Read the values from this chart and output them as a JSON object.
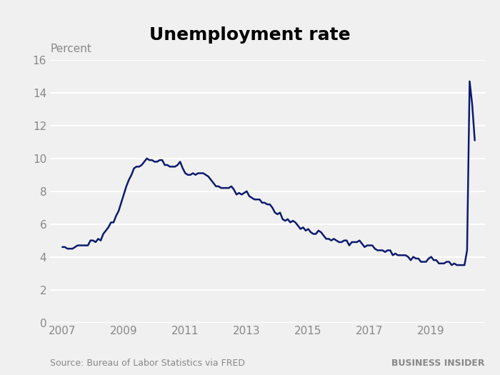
{
  "title": "Unemployment rate",
  "ylabel": "Percent",
  "source_text": "Source: Bureau of Labor Statistics via FRED",
  "brand_text": "BUSINESS INSIDER",
  "line_color": "#0d1b6e",
  "background_color": "#f0f0f0",
  "plot_bg_color": "#f0f0f0",
  "ylim": [
    0,
    16
  ],
  "yticks": [
    0,
    2,
    4,
    6,
    8,
    10,
    12,
    14,
    16
  ],
  "xlim": [
    2006.6,
    2020.75
  ],
  "xticks": [
    2007,
    2009,
    2011,
    2013,
    2015,
    2017,
    2019
  ],
  "line_width": 1.8,
  "tick_fontsize": 11,
  "title_fontsize": 18,
  "ylabel_fontsize": 11,
  "source_fontsize": 9,
  "brand_fontsize": 9,
  "grid_color": "#ffffff",
  "grid_linewidth": 1.5,
  "tick_color": "#888888",
  "data": [
    [
      2007.0,
      4.6
    ],
    [
      2007.083,
      4.6
    ],
    [
      2007.167,
      4.5
    ],
    [
      2007.25,
      4.5
    ],
    [
      2007.333,
      4.5
    ],
    [
      2007.417,
      4.6
    ],
    [
      2007.5,
      4.7
    ],
    [
      2007.583,
      4.7
    ],
    [
      2007.667,
      4.7
    ],
    [
      2007.75,
      4.7
    ],
    [
      2007.833,
      4.7
    ],
    [
      2007.917,
      5.0
    ],
    [
      2008.0,
      5.0
    ],
    [
      2008.083,
      4.9
    ],
    [
      2008.167,
      5.1
    ],
    [
      2008.25,
      5.0
    ],
    [
      2008.333,
      5.4
    ],
    [
      2008.417,
      5.6
    ],
    [
      2008.5,
      5.8
    ],
    [
      2008.583,
      6.1
    ],
    [
      2008.667,
      6.1
    ],
    [
      2008.75,
      6.5
    ],
    [
      2008.833,
      6.8
    ],
    [
      2008.917,
      7.3
    ],
    [
      2009.0,
      7.8
    ],
    [
      2009.083,
      8.3
    ],
    [
      2009.167,
      8.7
    ],
    [
      2009.25,
      9.0
    ],
    [
      2009.333,
      9.4
    ],
    [
      2009.417,
      9.5
    ],
    [
      2009.5,
      9.5
    ],
    [
      2009.583,
      9.6
    ],
    [
      2009.667,
      9.8
    ],
    [
      2009.75,
      10.0
    ],
    [
      2009.833,
      9.9
    ],
    [
      2009.917,
      9.9
    ],
    [
      2010.0,
      9.8
    ],
    [
      2010.083,
      9.8
    ],
    [
      2010.167,
      9.9
    ],
    [
      2010.25,
      9.9
    ],
    [
      2010.333,
      9.6
    ],
    [
      2010.417,
      9.6
    ],
    [
      2010.5,
      9.5
    ],
    [
      2010.583,
      9.5
    ],
    [
      2010.667,
      9.5
    ],
    [
      2010.75,
      9.6
    ],
    [
      2010.833,
      9.8
    ],
    [
      2010.917,
      9.4
    ],
    [
      2011.0,
      9.1
    ],
    [
      2011.083,
      9.0
    ],
    [
      2011.167,
      9.0
    ],
    [
      2011.25,
      9.1
    ],
    [
      2011.333,
      9.0
    ],
    [
      2011.417,
      9.1
    ],
    [
      2011.5,
      9.1
    ],
    [
      2011.583,
      9.1
    ],
    [
      2011.667,
      9.0
    ],
    [
      2011.75,
      8.9
    ],
    [
      2011.833,
      8.7
    ],
    [
      2011.917,
      8.5
    ],
    [
      2012.0,
      8.3
    ],
    [
      2012.083,
      8.3
    ],
    [
      2012.167,
      8.2
    ],
    [
      2012.25,
      8.2
    ],
    [
      2012.333,
      8.2
    ],
    [
      2012.417,
      8.2
    ],
    [
      2012.5,
      8.3
    ],
    [
      2012.583,
      8.1
    ],
    [
      2012.667,
      7.8
    ],
    [
      2012.75,
      7.9
    ],
    [
      2012.833,
      7.8
    ],
    [
      2012.917,
      7.9
    ],
    [
      2013.0,
      8.0
    ],
    [
      2013.083,
      7.7
    ],
    [
      2013.167,
      7.6
    ],
    [
      2013.25,
      7.5
    ],
    [
      2013.333,
      7.5
    ],
    [
      2013.417,
      7.5
    ],
    [
      2013.5,
      7.3
    ],
    [
      2013.583,
      7.3
    ],
    [
      2013.667,
      7.2
    ],
    [
      2013.75,
      7.2
    ],
    [
      2013.833,
      7.0
    ],
    [
      2013.917,
      6.7
    ],
    [
      2014.0,
      6.6
    ],
    [
      2014.083,
      6.7
    ],
    [
      2014.167,
      6.3
    ],
    [
      2014.25,
      6.2
    ],
    [
      2014.333,
      6.3
    ],
    [
      2014.417,
      6.1
    ],
    [
      2014.5,
      6.2
    ],
    [
      2014.583,
      6.1
    ],
    [
      2014.667,
      5.9
    ],
    [
      2014.75,
      5.7
    ],
    [
      2014.833,
      5.8
    ],
    [
      2014.917,
      5.6
    ],
    [
      2015.0,
      5.7
    ],
    [
      2015.083,
      5.5
    ],
    [
      2015.167,
      5.4
    ],
    [
      2015.25,
      5.4
    ],
    [
      2015.333,
      5.6
    ],
    [
      2015.417,
      5.5
    ],
    [
      2015.5,
      5.3
    ],
    [
      2015.583,
      5.1
    ],
    [
      2015.667,
      5.1
    ],
    [
      2015.75,
      5.0
    ],
    [
      2015.833,
      5.1
    ],
    [
      2015.917,
      5.0
    ],
    [
      2016.0,
      4.9
    ],
    [
      2016.083,
      4.9
    ],
    [
      2016.167,
      5.0
    ],
    [
      2016.25,
      5.0
    ],
    [
      2016.333,
      4.7
    ],
    [
      2016.417,
      4.9
    ],
    [
      2016.5,
      4.9
    ],
    [
      2016.583,
      4.9
    ],
    [
      2016.667,
      5.0
    ],
    [
      2016.75,
      4.8
    ],
    [
      2016.833,
      4.6
    ],
    [
      2016.917,
      4.7
    ],
    [
      2017.0,
      4.7
    ],
    [
      2017.083,
      4.7
    ],
    [
      2017.167,
      4.5
    ],
    [
      2017.25,
      4.4
    ],
    [
      2017.333,
      4.4
    ],
    [
      2017.417,
      4.4
    ],
    [
      2017.5,
      4.3
    ],
    [
      2017.583,
      4.4
    ],
    [
      2017.667,
      4.4
    ],
    [
      2017.75,
      4.1
    ],
    [
      2017.833,
      4.2
    ],
    [
      2017.917,
      4.1
    ],
    [
      2018.0,
      4.1
    ],
    [
      2018.083,
      4.1
    ],
    [
      2018.167,
      4.1
    ],
    [
      2018.25,
      4.0
    ],
    [
      2018.333,
      3.8
    ],
    [
      2018.417,
      4.0
    ],
    [
      2018.5,
      3.9
    ],
    [
      2018.583,
      3.9
    ],
    [
      2018.667,
      3.7
    ],
    [
      2018.75,
      3.7
    ],
    [
      2018.833,
      3.7
    ],
    [
      2018.917,
      3.9
    ],
    [
      2019.0,
      4.0
    ],
    [
      2019.083,
      3.8
    ],
    [
      2019.167,
      3.8
    ],
    [
      2019.25,
      3.6
    ],
    [
      2019.333,
      3.6
    ],
    [
      2019.417,
      3.6
    ],
    [
      2019.5,
      3.7
    ],
    [
      2019.583,
      3.7
    ],
    [
      2019.667,
      3.5
    ],
    [
      2019.75,
      3.6
    ],
    [
      2019.833,
      3.5
    ],
    [
      2019.917,
      3.5
    ],
    [
      2020.0,
      3.5
    ],
    [
      2020.083,
      3.5
    ],
    [
      2020.167,
      4.4
    ],
    [
      2020.25,
      14.7
    ],
    [
      2020.333,
      13.3
    ],
    [
      2020.417,
      11.1
    ]
  ]
}
